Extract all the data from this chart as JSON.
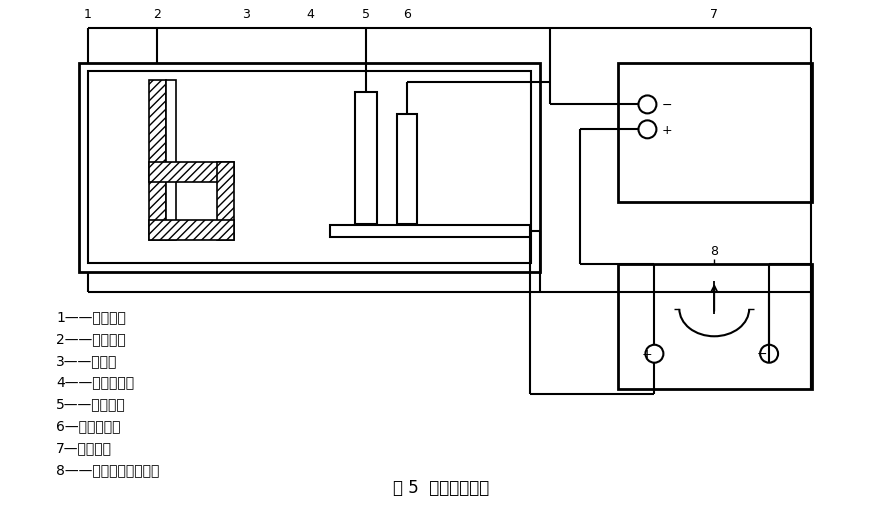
{
  "title": "图 5  电解脱锡装置",
  "bg": "#ffffff",
  "lc": "#000000",
  "figsize": [
    8.82,
    5.1
  ],
  "dpi": 100,
  "legend": [
    "1——脱锡槽；",
    "2——试样夹；",
    "3——试样；",
    "4——脱锡溶液；",
    "5——碳电极；",
    "6—参考电极；",
    "7—记录仪；",
    "8——恒电流直流电源。"
  ]
}
